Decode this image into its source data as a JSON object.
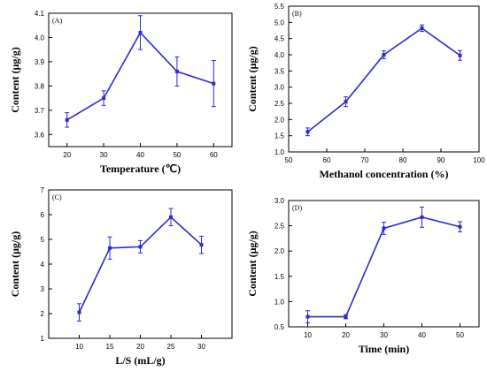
{
  "chart_data": [
    {
      "panel_label": "(A)",
      "type": "line",
      "xlabel": "Temperature (℃)",
      "ylabel": "Content (μg/g)",
      "xlim": [
        15,
        65
      ],
      "ylim": [
        3.55,
        4.1
      ],
      "xticks": [
        20,
        30,
        40,
        50,
        60
      ],
      "yticks": [
        3.6,
        3.7,
        3.8,
        3.9,
        4.0,
        4.1
      ],
      "xtick_labels": [
        "20",
        "30",
        "40",
        "50",
        "60"
      ],
      "ytick_labels": [
        "3.6",
        "3.7",
        "3.8",
        "3.9",
        "4.0",
        "4.1"
      ],
      "series": [
        {
          "x": [
            20,
            30,
            40,
            50,
            60
          ],
          "y": [
            3.66,
            3.75,
            4.02,
            3.86,
            3.81
          ],
          "err": [
            0.03,
            0.03,
            0.07,
            0.06,
            0.095
          ]
        }
      ]
    },
    {
      "panel_label": "(B)",
      "type": "line",
      "xlabel": "Methanol concentration (%)",
      "ylabel": "Content (μg/g)",
      "xlim": [
        50,
        100
      ],
      "ylim": [
        1.0,
        5.5
      ],
      "xticks": [
        50,
        60,
        70,
        80,
        90,
        100
      ],
      "yticks": [
        1.0,
        1.5,
        2.0,
        2.5,
        3.0,
        3.5,
        4.0,
        4.5,
        5.0,
        5.5
      ],
      "xtick_labels": [
        "50",
        "60",
        "70",
        "80",
        "90",
        "100"
      ],
      "ytick_labels": [
        "1.0",
        "1.5",
        "2.0",
        "2.5",
        "3.0",
        "3.5",
        "4.0",
        "4.5",
        "5.0",
        "5.5"
      ],
      "series": [
        {
          "x": [
            55,
            65,
            75,
            85,
            95
          ],
          "y": [
            1.62,
            2.55,
            4.0,
            4.82,
            3.98
          ],
          "err": [
            0.12,
            0.15,
            0.12,
            0.1,
            0.15
          ]
        }
      ]
    },
    {
      "panel_label": "(C)",
      "type": "line",
      "xlabel": "L/S (mL/g)",
      "ylabel": "Content (μg/g)",
      "xlim": [
        5,
        35
      ],
      "ylim": [
        1,
        7
      ],
      "xticks": [
        10,
        15,
        20,
        25,
        30
      ],
      "yticks": [
        1,
        2,
        3,
        4,
        5,
        6,
        7
      ],
      "xtick_labels": [
        "10",
        "15",
        "20",
        "25",
        "30"
      ],
      "ytick_labels": [
        "1",
        "2",
        "3",
        "4",
        "5",
        "6",
        "7"
      ],
      "series": [
        {
          "x": [
            10,
            15,
            20,
            25,
            30
          ],
          "y": [
            2.05,
            4.65,
            4.7,
            5.9,
            4.78
          ],
          "err": [
            0.35,
            0.45,
            0.25,
            0.35,
            0.35
          ]
        }
      ]
    },
    {
      "panel_label": "(D)",
      "type": "line",
      "xlabel": "Time (min)",
      "ylabel": "Content (μg/g)",
      "xlim": [
        5,
        55
      ],
      "ylim": [
        0.5,
        3.0
      ],
      "xticks": [
        10,
        20,
        30,
        40,
        50
      ],
      "yticks": [
        0.5,
        1.0,
        1.5,
        2.0,
        2.5,
        3.0
      ],
      "xtick_labels": [
        "10",
        "20",
        "30",
        "40",
        "50"
      ],
      "ytick_labels": [
        "0.5",
        "1.0",
        "1.5",
        "2.0",
        "2.5",
        "3.0"
      ],
      "series": [
        {
          "x": [
            10,
            20,
            30,
            40,
            50
          ],
          "y": [
            0.7,
            0.7,
            2.45,
            2.67,
            2.48
          ],
          "err": [
            0.12,
            0.04,
            0.12,
            0.2,
            0.1
          ]
        }
      ]
    }
  ],
  "style": {
    "series_color": "#2a2ad0",
    "axis_color": "#000000"
  }
}
